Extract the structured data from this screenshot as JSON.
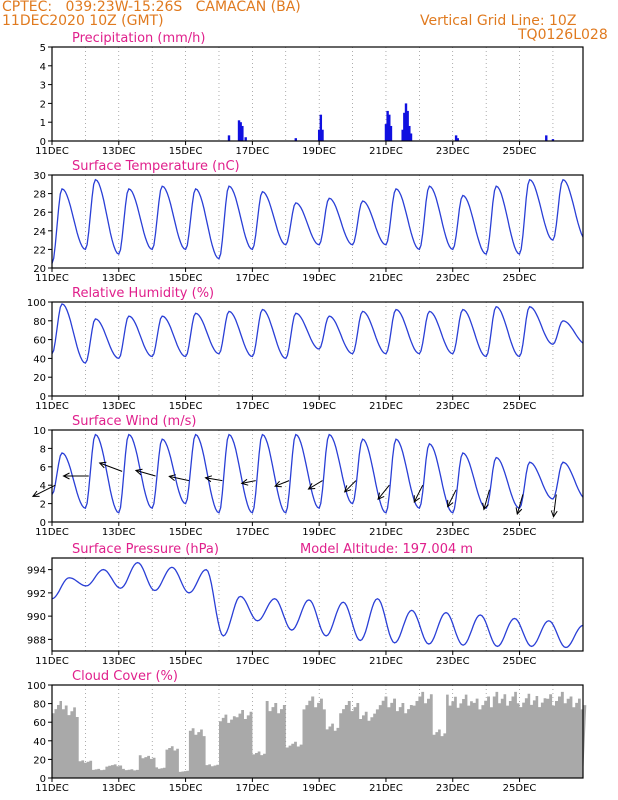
{
  "header": {
    "line1": "CPTEC:   039:23W-15:26S   CAMACAN (BA)",
    "line2": "11DEC2020 10Z (GMT)",
    "right1": "Vertical Grid Line: 10Z",
    "right2": "TQ0126L028",
    "model_altitude": "Model Altitude: 197.004 m",
    "orange": "#e07a1f",
    "magenta": "#e0208c"
  },
  "chart_data": [
    {
      "type": "bar",
      "title": "Precipitation (mm/h)",
      "ylim": [
        0,
        5
      ],
      "yticks": [
        "0",
        "1",
        "2",
        "3",
        "4",
        "5"
      ],
      "xticks": [
        "11DEC",
        "13DEC",
        "15DEC",
        "17DEC",
        "19DEC",
        "21DEC",
        "23DEC",
        "25DEC"
      ],
      "x_unit": "days since 11DEC 10Z",
      "bars": [
        [
          5.3,
          0.3
        ],
        [
          5.6,
          1.1
        ],
        [
          5.65,
          1.0
        ],
        [
          5.7,
          0.8
        ],
        [
          5.8,
          0.2
        ],
        [
          7.3,
          0.15
        ],
        [
          8.0,
          0.6
        ],
        [
          8.05,
          1.4
        ],
        [
          8.1,
          0.6
        ],
        [
          10.0,
          0.9
        ],
        [
          10.05,
          1.6
        ],
        [
          10.1,
          1.4
        ],
        [
          10.15,
          0.8
        ],
        [
          10.5,
          0.6
        ],
        [
          10.55,
          1.5
        ],
        [
          10.6,
          2.0
        ],
        [
          10.65,
          1.6
        ],
        [
          10.7,
          0.8
        ],
        [
          10.75,
          0.4
        ],
        [
          12.1,
          0.3
        ],
        [
          12.15,
          0.15
        ],
        [
          14.8,
          0.3
        ],
        [
          15.0,
          0.1
        ]
      ]
    },
    {
      "type": "line",
      "title": "Surface Temperature (nC)",
      "ylim": [
        20,
        30
      ],
      "yticks": [
        "20",
        "22",
        "24",
        "26",
        "28",
        "30"
      ],
      "xticks": [
        "11DEC",
        "13DEC",
        "15DEC",
        "17DEC",
        "19DEC",
        "21DEC",
        "23DEC",
        "25DEC"
      ],
      "max": [
        28.5,
        29.5,
        28.5,
        28.8,
        28.5,
        28.8,
        28.2,
        27.0,
        27.5,
        27.2,
        28.5,
        28.8,
        27.8,
        28.8,
        29.5,
        29.5
      ],
      "min": [
        20.5,
        22.0,
        21.5,
        22.0,
        22.0,
        21.0,
        22.0,
        22.5,
        22.5,
        22.5,
        22.5,
        22.0,
        22.0,
        21.5,
        21.5,
        23.0
      ]
    },
    {
      "type": "line",
      "title": "Relative Humidity (%)",
      "ylim": [
        0,
        100
      ],
      "yticks": [
        "0",
        "20",
        "40",
        "60",
        "80",
        "100"
      ],
      "xticks": [
        "11DEC",
        "13DEC",
        "15DEC",
        "17DEC",
        "19DEC",
        "21DEC",
        "23DEC",
        "25DEC"
      ],
      "max": [
        98,
        82,
        85,
        85,
        88,
        90,
        92,
        88,
        85,
        90,
        92,
        90,
        92,
        95,
        95,
        80
      ],
      "min": [
        45,
        35,
        40,
        42,
        42,
        45,
        42,
        40,
        50,
        45,
        45,
        45,
        45,
        42,
        42,
        55
      ]
    },
    {
      "type": "line",
      "title": "Surface Wind (m/s)",
      "ylim": [
        0,
        10
      ],
      "yticks": [
        "0",
        "2",
        "4",
        "6",
        "8",
        "10"
      ],
      "xticks": [
        "11DEC",
        "13DEC",
        "15DEC",
        "17DEC",
        "19DEC",
        "21DEC",
        "23DEC",
        "25DEC"
      ],
      "max": [
        7.5,
        9.5,
        9.5,
        9.0,
        9.5,
        9.5,
        9.5,
        9.5,
        9.5,
        9.0,
        9.0,
        8.5,
        7.5,
        7.0,
        6.5,
        6.5
      ],
      "min": [
        3.0,
        1.5,
        1.0,
        1.5,
        2.0,
        1.0,
        1.0,
        1.0,
        1.5,
        2.0,
        1.0,
        1.5,
        1.0,
        1.5,
        1.5,
        2.5
      ],
      "vectors": [
        [
          0.1,
          4,
          -0.8,
          -0.4
        ],
        [
          1.1,
          5,
          -0.9,
          0
        ],
        [
          2.1,
          5.5,
          -0.8,
          0.3
        ],
        [
          3.1,
          5,
          -0.7,
          0.2
        ],
        [
          4.1,
          4.5,
          -0.7,
          0.15
        ],
        [
          5.1,
          4.5,
          -0.6,
          0.1
        ],
        [
          6.1,
          4.5,
          -0.5,
          -0.1
        ],
        [
          7.1,
          4.5,
          -0.5,
          -0.2
        ],
        [
          8.1,
          4.5,
          -0.5,
          -0.3
        ],
        [
          9.1,
          4.5,
          -0.4,
          -0.4
        ],
        [
          10.1,
          4,
          -0.4,
          -0.5
        ],
        [
          11.1,
          4,
          -0.3,
          -0.6
        ],
        [
          12.1,
          3.5,
          -0.3,
          -0.6
        ],
        [
          13.1,
          3.5,
          -0.2,
          -0.7
        ],
        [
          14.1,
          3,
          -0.2,
          -0.7
        ],
        [
          15.1,
          3,
          -0.1,
          -0.8
        ]
      ]
    },
    {
      "type": "line",
      "title": "Surface Pressure (hPa)",
      "ylim": [
        987,
        995
      ],
      "yticks": [
        "988",
        "990",
        "992",
        "994"
      ],
      "xticks": [
        "11DEC",
        "13DEC",
        "15DEC",
        "17DEC",
        "19DEC",
        "21DEC",
        "23DEC",
        "25DEC"
      ],
      "values": [
        991.5,
        993.3,
        992.6,
        994.0,
        992.4,
        994.6,
        992.2,
        994.2,
        992.0,
        994.0,
        988.3,
        991.7,
        989.6,
        991.5,
        988.8,
        991.4,
        988.3,
        991.2,
        987.9,
        991.5,
        987.7,
        990.5,
        987.6,
        990.3,
        987.5,
        990.1,
        987.4,
        989.8,
        987.4,
        989.6,
        987.3,
        989.2
      ]
    },
    {
      "type": "area",
      "title": "Cloud Cover (%)",
      "ylim": [
        0,
        100
      ],
      "yticks": [
        "0",
        "20",
        "40",
        "60",
        "80",
        "100"
      ],
      "xticks": [
        "11DEC",
        "13DEC",
        "15DEC",
        "17DEC",
        "19DEC",
        "21DEC",
        "23DEC",
        "25DEC"
      ],
      "color": "#a9a9a9",
      "segments": [
        [
          0,
          0.3,
          85
        ],
        [
          0.3,
          0.8,
          80
        ],
        [
          0.8,
          1.2,
          20
        ],
        [
          1.2,
          1.6,
          10
        ],
        [
          1.6,
          2.1,
          15
        ],
        [
          2.1,
          2.6,
          10
        ],
        [
          2.6,
          3.1,
          25
        ],
        [
          3.1,
          3.4,
          12
        ],
        [
          3.4,
          3.8,
          35
        ],
        [
          3.8,
          4.1,
          8
        ],
        [
          4.1,
          4.6,
          55
        ],
        [
          4.6,
          5.0,
          15
        ],
        [
          5.0,
          5.5,
          70
        ],
        [
          5.5,
          6.0,
          75
        ],
        [
          6.0,
          6.4,
          30
        ],
        [
          6.4,
          7.0,
          85
        ],
        [
          7.0,
          7.5,
          40
        ],
        [
          7.5,
          8.2,
          90
        ],
        [
          8.2,
          8.6,
          60
        ],
        [
          8.6,
          9.2,
          85
        ],
        [
          9.2,
          9.7,
          75
        ],
        [
          9.7,
          10.3,
          90
        ],
        [
          10.3,
          10.8,
          85
        ],
        [
          10.8,
          11.4,
          95
        ],
        [
          11.4,
          11.8,
          55
        ],
        [
          11.8,
          12.6,
          92
        ],
        [
          12.6,
          13.2,
          90
        ],
        [
          13.2,
          14.0,
          95
        ],
        [
          14.0,
          14.8,
          93
        ],
        [
          14.8,
          15.5,
          95
        ],
        [
          15.5,
          16,
          90
        ]
      ]
    }
  ]
}
